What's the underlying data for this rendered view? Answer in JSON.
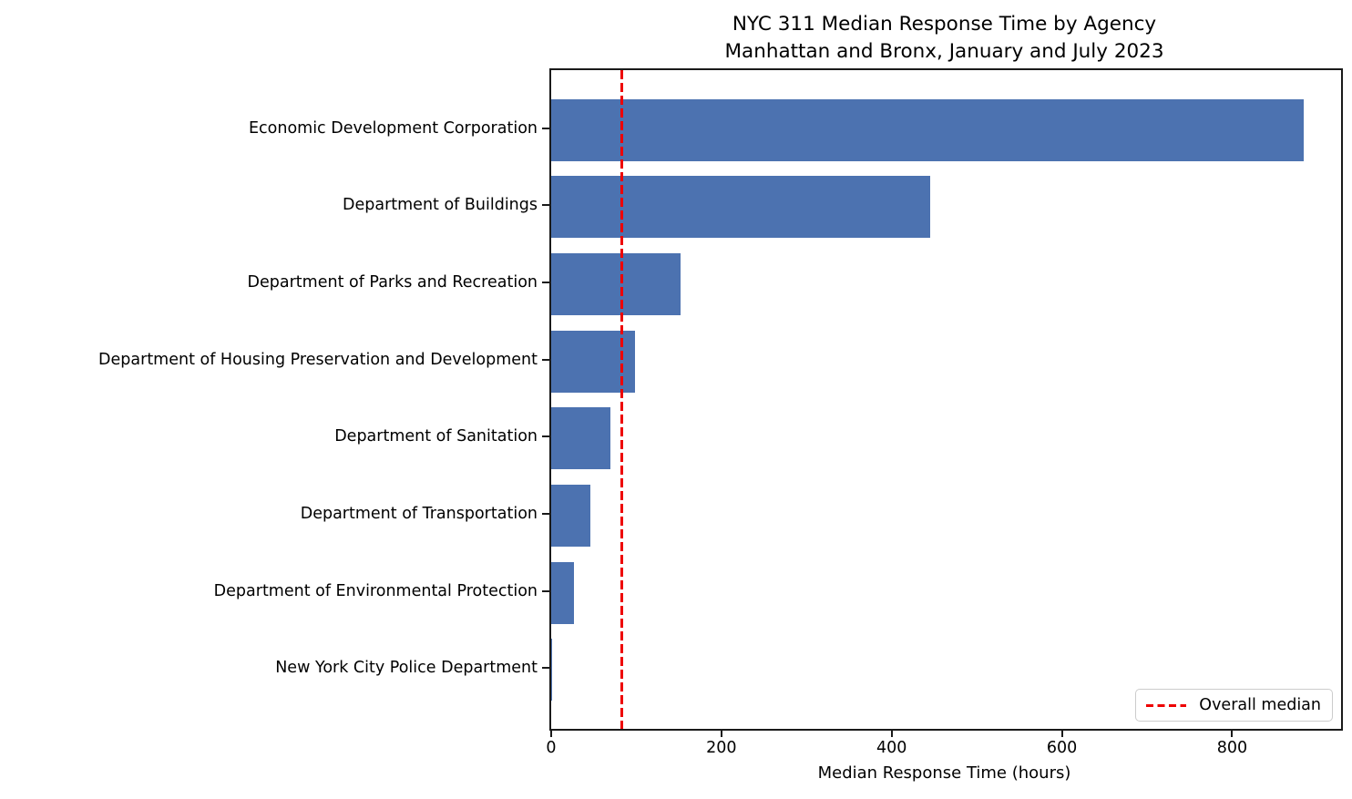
{
  "chart_data": {
    "type": "bar",
    "orientation": "horizontal",
    "title": "NYC 311 Median Response Time by Agency",
    "subtitle": "Manhattan and Bronx, January and July 2023",
    "xlabel": "Median Response Time (hours)",
    "categories": [
      "Economic Development Corporation",
      "Department of Buildings",
      "Department of Parks and Recreation",
      "Department of Housing Preservation and Development",
      "Department of Sanitation",
      "Department of Transportation",
      "Department of Environmental Protection",
      "New York City Police Department"
    ],
    "values": [
      884,
      445,
      152,
      98,
      70,
      46,
      27,
      0.5
    ],
    "xlim": [
      0,
      928
    ],
    "xticks": [
      0,
      200,
      400,
      600,
      800
    ],
    "grid": false,
    "bar_color": "#4C72B0",
    "reference_line": {
      "value": 83,
      "color": "#ee0000",
      "style": "dashed",
      "label": "Overall median"
    },
    "legend": {
      "position": "lower right",
      "entries": [
        {
          "label": "Overall median",
          "color": "#ee0000",
          "style": "dashed"
        }
      ]
    }
  }
}
